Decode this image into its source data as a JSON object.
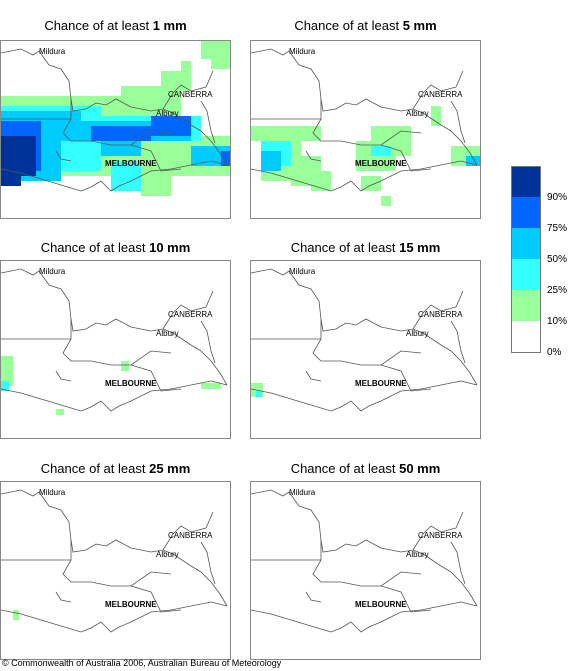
{
  "panels": [
    {
      "prefix": "Chance of at least ",
      "amount": "1 mm"
    },
    {
      "prefix": "Chance of at least ",
      "amount": "5 mm"
    },
    {
      "prefix": "Chance of at least ",
      "amount": "10 mm"
    },
    {
      "prefix": "Chance of at least ",
      "amount": "15 mm"
    },
    {
      "prefix": "Chance of at least ",
      "amount": "25 mm"
    },
    {
      "prefix": "Chance of at least ",
      "amount": "50 mm"
    }
  ],
  "places": {
    "mildura": "Mildura",
    "canberra": "CANBERRA",
    "albury": "Albury",
    "melbourne": "MELBOURNE"
  },
  "legend": {
    "labels": [
      "90%",
      "75%",
      "50%",
      "25%",
      "10%",
      "0%"
    ],
    "colors": [
      "#003399",
      "#0066ff",
      "#00ccff",
      "#33ffff",
      "#99ff99",
      "#ffffff"
    ]
  },
  "colors": {
    "border": "#555555",
    "green": "#99ff99",
    "cyan": "#33ffff",
    "lightblue": "#00ccff",
    "blue": "#0066ff",
    "navy": "#003399"
  },
  "copyright": "© Commonwealth of Australia 2006, Australian Bureau of Meteorology"
}
